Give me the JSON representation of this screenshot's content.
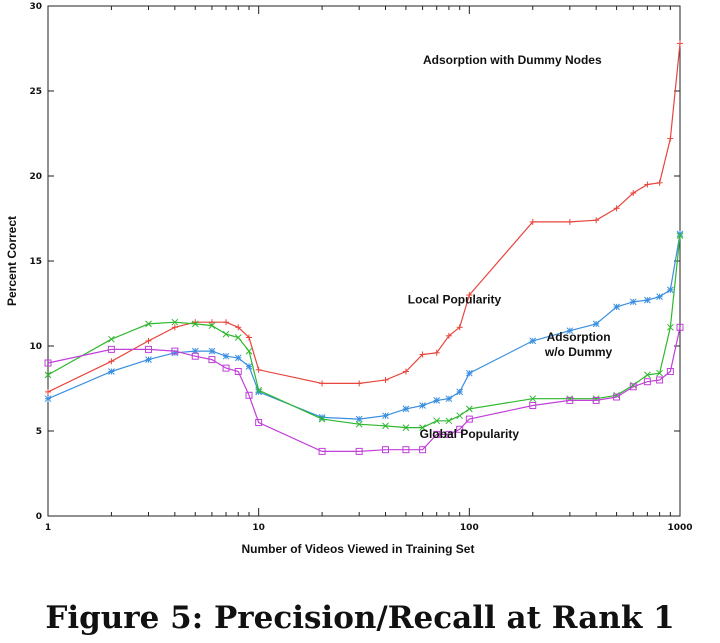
{
  "caption": "Figure 5: Precision/Recall at Rank 1",
  "chart_data": {
    "type": "line",
    "title": "",
    "xlabel": "Number of Videos Viewed in Training Set",
    "ylabel": "Percent Correct",
    "xscale": "log",
    "xlim": [
      1,
      1000
    ],
    "ylim": [
      0,
      30
    ],
    "xticks": [
      {
        "value": 1,
        "label": "1"
      },
      {
        "value": 10,
        "label": "10"
      },
      {
        "value": 100,
        "label": "100"
      },
      {
        "value": 1000,
        "label": "1000"
      }
    ],
    "yticks": [
      {
        "value": 0,
        "label": "0"
      },
      {
        "value": 5,
        "label": "5"
      },
      {
        "value": 10,
        "label": "10"
      },
      {
        "value": 15,
        "label": "15"
      },
      {
        "value": 20,
        "label": "20"
      },
      {
        "value": 25,
        "label": "25"
      },
      {
        "value": 30,
        "label": "30"
      }
    ],
    "grid": false,
    "series": [
      {
        "name": "Adsorption with Dummy Nodes",
        "color": "#e8453c",
        "marker": "plus",
        "x": [
          1,
          2,
          3,
          4,
          5,
          6,
          7,
          8,
          9,
          10,
          20,
          30,
          40,
          50,
          60,
          70,
          80,
          90,
          100,
          200,
          300,
          400,
          500,
          600,
          700,
          800,
          900,
          1000
        ],
        "y": [
          7.3,
          9.1,
          10.3,
          11.1,
          11.4,
          11.4,
          11.4,
          11.1,
          10.5,
          8.6,
          7.8,
          7.8,
          8.0,
          8.5,
          9.5,
          9.6,
          10.6,
          11.1,
          13.0,
          17.3,
          17.3,
          17.4,
          18.1,
          19.0,
          19.5,
          19.6,
          22.2,
          27.8
        ]
      },
      {
        "name": "Local Popularity",
        "color": "#3a8fe0",
        "marker": "star",
        "x": [
          1,
          2,
          3,
          4,
          5,
          6,
          7,
          8,
          9,
          10,
          20,
          30,
          40,
          50,
          60,
          70,
          80,
          90,
          100,
          200,
          300,
          400,
          500,
          600,
          700,
          800,
          900,
          1000
        ],
        "y": [
          6.9,
          8.5,
          9.2,
          9.6,
          9.7,
          9.7,
          9.4,
          9.3,
          8.8,
          7.3,
          5.8,
          5.7,
          5.9,
          6.3,
          6.5,
          6.8,
          6.9,
          7.3,
          8.4,
          10.3,
          10.9,
          11.3,
          12.3,
          12.6,
          12.7,
          12.9,
          13.3,
          16.6
        ]
      },
      {
        "name": "Adsorption w/o Dummy",
        "color": "#2eb82e",
        "marker": "x",
        "x": [
          1,
          2,
          3,
          4,
          5,
          6,
          7,
          8,
          9,
          10,
          20,
          30,
          40,
          50,
          60,
          70,
          80,
          90,
          100,
          200,
          300,
          400,
          500,
          600,
          700,
          800,
          900,
          1000
        ],
        "y": [
          8.3,
          10.4,
          11.3,
          11.4,
          11.3,
          11.2,
          10.7,
          10.5,
          9.7,
          7.4,
          5.7,
          5.4,
          5.3,
          5.2,
          5.2,
          5.6,
          5.6,
          5.9,
          6.3,
          6.9,
          6.9,
          6.9,
          7.1,
          7.7,
          8.3,
          8.4,
          11.1,
          16.5
        ]
      },
      {
        "name": "Global Popularity",
        "color": "#c040d8",
        "marker": "square",
        "x": [
          1,
          2,
          3,
          4,
          5,
          6,
          7,
          8,
          9,
          10,
          20,
          30,
          40,
          50,
          60,
          70,
          80,
          90,
          100,
          200,
          300,
          400,
          500,
          600,
          700,
          800,
          900,
          1000
        ],
        "y": [
          9.0,
          9.8,
          9.8,
          9.7,
          9.4,
          9.2,
          8.7,
          8.5,
          7.1,
          5.5,
          3.8,
          3.8,
          3.9,
          3.9,
          3.9,
          4.8,
          4.8,
          5.1,
          5.7,
          6.5,
          6.8,
          6.8,
          7.0,
          7.6,
          7.9,
          8.0,
          8.5,
          11.1
        ]
      }
    ],
    "annotations": [
      {
        "text": "Adsorption with Dummy Nodes",
        "x": 160,
        "y": 26.6
      },
      {
        "text": "Local Popularity",
        "x": 85,
        "y": 12.5
      },
      {
        "text": "Adsorption",
        "x": 330,
        "y": 10.3
      },
      {
        "text": "w/o Dummy",
        "x": 330,
        "y": 9.4
      },
      {
        "text": "Global Popularity",
        "x": 100,
        "y": 4.6
      }
    ]
  }
}
